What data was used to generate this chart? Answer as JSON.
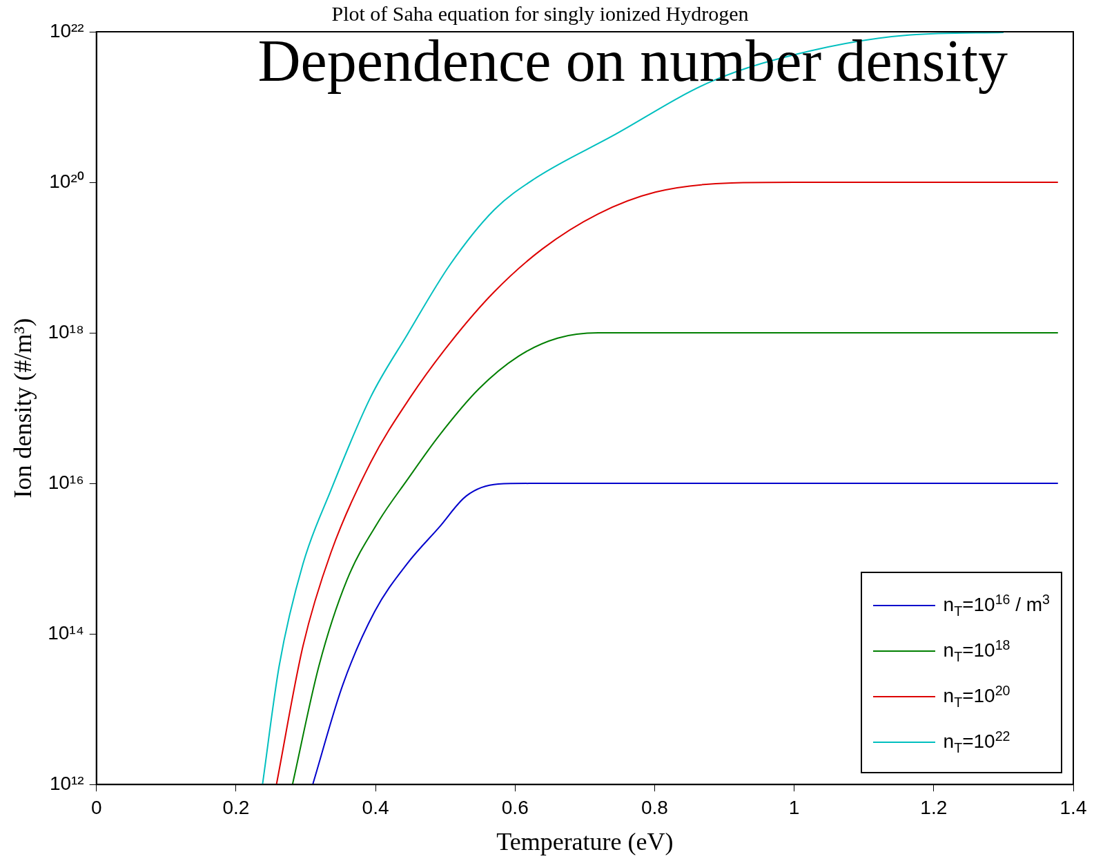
{
  "chart_data": {
    "type": "line",
    "title": "Plot of Saha equation for singly ionized Hydrogen",
    "xlabel": "Temperature (eV)",
    "ylabel": "Ion density (#/m³)",
    "annotations": [
      "Dependence on number density"
    ],
    "log": "y",
    "grid": false,
    "legend": "bottom right",
    "marker": "none",
    "line_style": "solid",
    "xlim": [
      0,
      1.4
    ],
    "xticks": [
      0,
      0.2,
      0.4,
      0.6,
      0.8,
      1,
      1.2,
      1.4
    ],
    "ylim": [
      1000000000000.0,
      1e+22
    ],
    "yticks": [
      {
        "value": 1000000000000.0,
        "label": "10¹²"
      },
      {
        "value": 100000000000000.0,
        "label": "10¹⁴"
      },
      {
        "value": 1e+16,
        "label": "10¹⁶"
      },
      {
        "value": 1e+18,
        "label": "10¹⁸"
      },
      {
        "value": 1e+20,
        "label": "10²⁰"
      },
      {
        "value": 1e+22,
        "label": "10²²"
      }
    ],
    "series": [
      {
        "name": "n$_{T}$=10$^{16}$ / m$^{3}$",
        "color": "#0000cc",
        "x": [
          0.31,
          0.353,
          0.399,
          0.445,
          0.491,
          0.53,
          0.576,
          0.62,
          1.378
        ],
        "values": [
          1000000000000.0,
          21000000000000.0,
          200000000000000.0,
          850000000000000.0,
          2600000000000000.0,
          6800000000000000.0,
          9800000000000000.0,
          1e+16,
          1e+16
        ]
      },
      {
        "name": "n$_{T}$=10$^{18}$",
        "color": "#007f00",
        "x": [
          0.281,
          0.319,
          0.359,
          0.405,
          0.445,
          0.491,
          0.548,
          0.605,
          0.661,
          0.719,
          1.378
        ],
        "values": [
          1000000000000.0,
          38000000000000.0,
          520000000000000.0,
          3200000000000000.0,
          1.1e+16,
          4.3e+16,
          1.8e+17,
          4.9e+17,
          8.5e+17,
          1e+18,
          1e+18
        ]
      },
      {
        "name": "n$_{T}$=10$^{20}$",
        "color": "#dd0000",
        "x": [
          0.258,
          0.296,
          0.336,
          0.393,
          0.45,
          0.507,
          0.57,
          0.639,
          0.719,
          0.801,
          0.91,
          1.0,
          1.378
        ],
        "values": [
          1000000000000.0,
          69000000000000.0,
          1200000000000000.0,
          1.9e+16,
          1.4e+17,
          7.4e+17,
          3.5e+18,
          1.3e+19,
          3.8e+19,
          7.4e+19,
          9.8e+19,
          1e+20,
          1e+20
        ]
      },
      {
        "name": "n$_{T}$=10$^{22}$",
        "color": "#00bfbf",
        "x": [
          0.238,
          0.262,
          0.296,
          0.336,
          0.393,
          0.445,
          0.507,
          0.57,
          0.627,
          0.739,
          0.882,
          1.024,
          1.167,
          1.3
        ],
        "values": [
          1000000000000.0,
          38000000000000.0,
          850000000000000.0,
          8100000000000000.0,
          1.4e+17,
          9.3e+17,
          8.1e+18,
          4.3e+19,
          1.1e+20,
          4.1e+20,
          2.2e+21,
          5.6e+21,
          9.1e+21,
          9.8e+21
        ]
      }
    ]
  }
}
